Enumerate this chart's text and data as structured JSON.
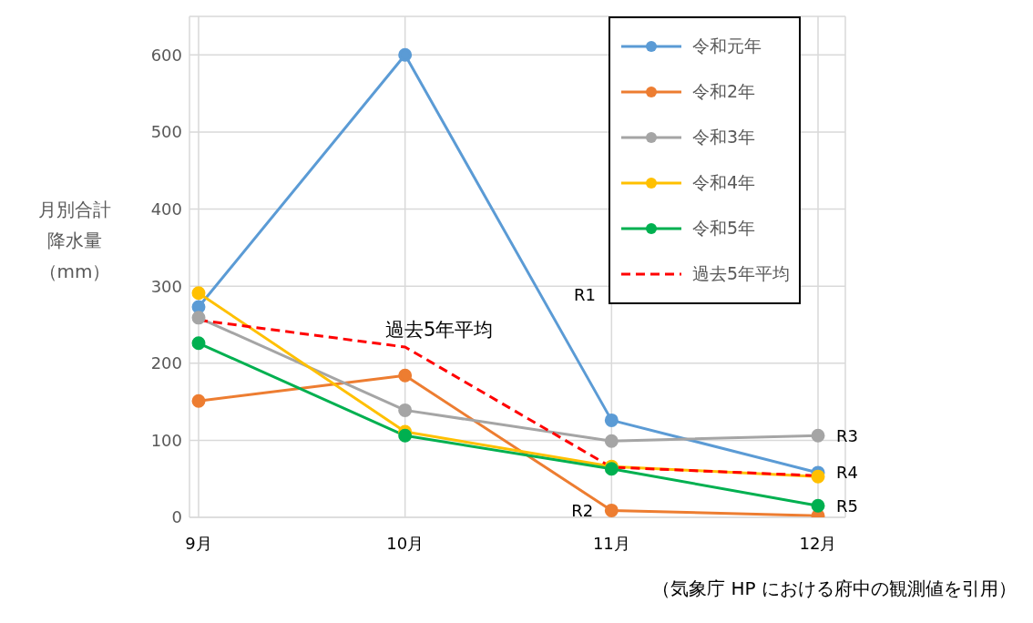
{
  "chart_data": {
    "type": "line",
    "ylabel": "月別合計降水量（mm）",
    "categories": [
      "9月",
      "10月",
      "11月",
      "12月"
    ],
    "series": [
      {
        "name": "令和元年",
        "color": "#5b9bd5",
        "values": [
          273,
          600,
          126,
          58
        ]
      },
      {
        "name": "令和2年",
        "color": "#ed7d31",
        "values": [
          151,
          184,
          9,
          2
        ]
      },
      {
        "name": "令和3年",
        "color": "#a5a5a5",
        "values": [
          259,
          139,
          99,
          106
        ]
      },
      {
        "name": "令和4年",
        "color": "#ffc000",
        "values": [
          291,
          111,
          66,
          53
        ]
      },
      {
        "name": "令和5年",
        "color": "#00b050",
        "values": [
          226,
          106,
          63,
          15
        ]
      },
      {
        "name": "過去5年平均",
        "color": "#ff0000",
        "values": [
          256,
          221,
          65,
          54
        ],
        "line_style": "dashed",
        "marker": "none"
      }
    ],
    "marker": "circle",
    "line_style": "solid",
    "ylim": [
      0,
      650
    ],
    "yticks": [
      0,
      100,
      200,
      300,
      400,
      500,
      600
    ],
    "grid": true,
    "legend": "top right",
    "annotations": [
      "過去5年平均",
      "R1",
      {
        "text": "R2",
        "x": "11月",
        "y": 9
      },
      {
        "text": "R3",
        "x": "12月",
        "y": 106
      },
      {
        "text": "R4",
        "x": "12月",
        "y": 58
      },
      {
        "text": "R5",
        "x": "12月",
        "y": 15
      },
      "（気象庁 HP における府中の観測値を引用）"
    ]
  }
}
